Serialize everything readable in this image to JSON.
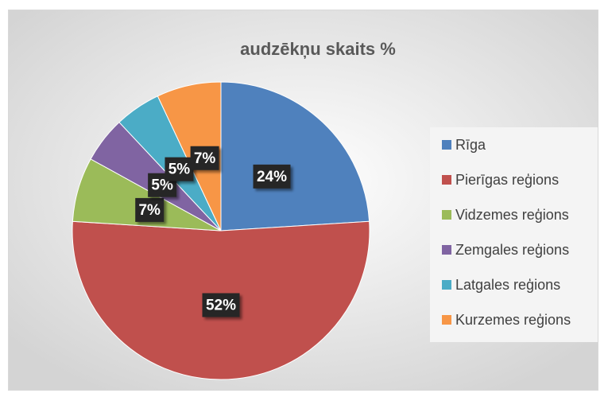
{
  "chart_data": {
    "type": "pie",
    "title": "audzēkņu skaits %",
    "categories": [
      "Rīga",
      "Pierīgas reģions",
      "Vidzemes reģions",
      "Zemgales reģions",
      "Latgales reģions",
      "Kurzemes reģions"
    ],
    "values": [
      24,
      52,
      7,
      5,
      5,
      7
    ],
    "value_labels": [
      "24%",
      "52%",
      "7%",
      "5%",
      "5%",
      "7%"
    ],
    "colors": [
      "#4f81bd",
      "#c0504d",
      "#9bbb59",
      "#8064a2",
      "#4bacc6",
      "#f79646"
    ],
    "legend": "right"
  }
}
